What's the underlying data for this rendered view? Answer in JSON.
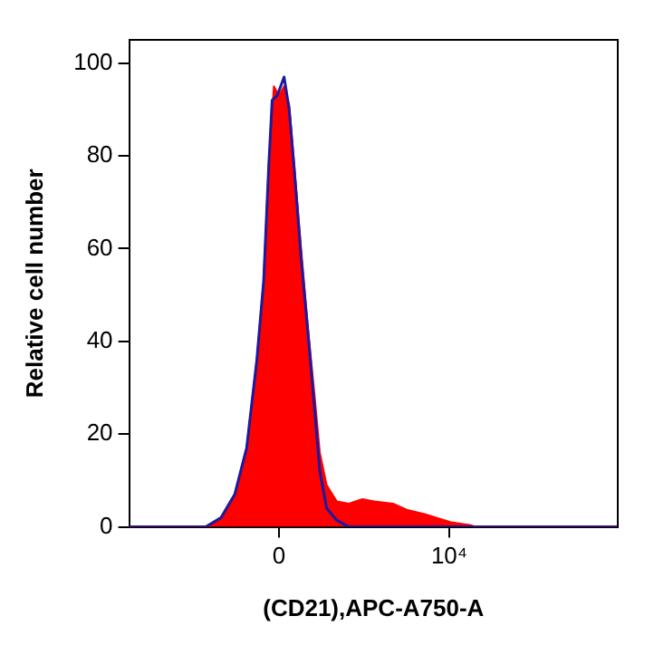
{
  "chart_data": {
    "type": "area",
    "xlabel": "(CD21),APC-A750-A",
    "ylabel": "Relative cell number",
    "xlim": [
      -8800,
      19900
    ],
    "xticks": [
      0,
      {
        "value": 10000,
        "label": "10⁴"
      }
    ],
    "ylim": [
      0,
      105
    ],
    "yticks": [
      0,
      20,
      40,
      60,
      80,
      100
    ],
    "grid": false,
    "legend": false,
    "marker": "none",
    "series": [
      {
        "type": "area",
        "color": "#ff0000",
        "x": [
          -8800,
          -4100,
          -3400,
          -2600,
          -1900,
          -1300,
          -900,
          -600,
          -300,
          0,
          300,
          600,
          900,
          1300,
          1700,
          2100,
          2400,
          2800,
          3400,
          4100,
          4900,
          5600,
          6700,
          7500,
          8600,
          9400,
          10100,
          11200,
          11600,
          19900
        ],
        "values": [
          0,
          0,
          2,
          7,
          17,
          36,
          53,
          78,
          95,
          93,
          95,
          91,
          78,
          60,
          43,
          28,
          16,
          9,
          5.5,
          5,
          6,
          5.5,
          5,
          3.7,
          2.7,
          1.8,
          1,
          0.4,
          0,
          0
        ]
      },
      {
        "type": "line",
        "color": "#1a1aa0",
        "x": [
          -8800,
          -4300,
          -3400,
          -2600,
          -1900,
          -1300,
          -900,
          -600,
          -400,
          -100,
          300,
          600,
          900,
          1300,
          1700,
          2100,
          2400,
          2800,
          3400,
          4100,
          19900
        ],
        "values": [
          0,
          0,
          2,
          7,
          17,
          36,
          53,
          78,
          92,
          93,
          97,
          90,
          77,
          58,
          42,
          25,
          12,
          4,
          1.4,
          0,
          0
        ]
      }
    ]
  }
}
